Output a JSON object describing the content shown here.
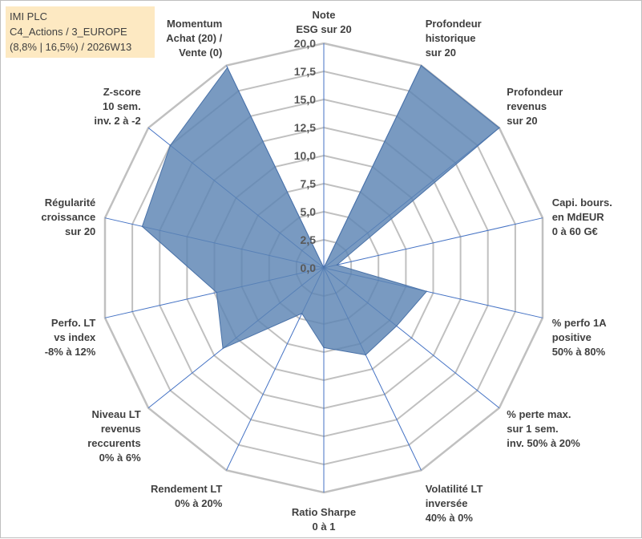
{
  "header": {
    "line1": "IMI PLC",
    "line2": "C4_Actions / 3_EUROPE",
    "line3": "(8,8% | 16,5%) / 2026W13"
  },
  "colors": {
    "fill": "#5b84b3",
    "stroke": "#4a72a8",
    "grid": "#c0c0c0",
    "spoke": "#4472c4",
    "title_bg": "#fde9c2"
  },
  "chart_data": {
    "type": "radar",
    "max": 20,
    "ticks": [
      "0,0",
      "2,5",
      "5,0",
      "7,5",
      "10,0",
      "12,5",
      "15,0",
      "17,5",
      "20,0"
    ],
    "axes": [
      {
        "label": [
          "Note",
          "ESG sur 20"
        ],
        "value": 0
      },
      {
        "label": [
          "Profondeur",
          "historique",
          "sur 20"
        ],
        "value": 20
      },
      {
        "label": [
          "Profondeur",
          "revenus",
          "sur 20"
        ],
        "value": 20
      },
      {
        "label": [
          "Capi. bours.",
          "en MdEUR",
          "0 à 60 G€"
        ],
        "value": 1.2
      },
      {
        "label": [
          "% perfo 1A",
          "positive",
          "50% à 80%"
        ],
        "value": 9.4
      },
      {
        "label": [
          "% perte max.",
          "sur 1 sem.",
          "inv. 50% à 20%"
        ],
        "value": 8.3
      },
      {
        "label": [
          "Volatilité LT",
          "inversée",
          "40% à 0%"
        ],
        "value": 8.6
      },
      {
        "label": [
          "Ratio Sharpe",
          "0 à 1"
        ],
        "value": 7.1
      },
      {
        "label": [
          "Rendement LT",
          "0% à 20%"
        ],
        "value": 4.5
      },
      {
        "label": [
          "Niveau LT",
          "revenus",
          "reccurents",
          "0% à 6%"
        ],
        "value": 11.5
      },
      {
        "label": [
          "Perfo. LT",
          "vs index",
          "-8% à 12%"
        ],
        "value": 9.8
      },
      {
        "label": [
          "Régularité",
          "croissance",
          "sur 20"
        ],
        "value": 16.6
      },
      {
        "label": [
          "Z-score",
          "10 sem.",
          "inv. 2 à -2"
        ],
        "value": 17.5
      },
      {
        "label": [
          "Momentum",
          "Achat (20) /",
          "Vente (0)"
        ],
        "value": 19.8
      }
    ]
  }
}
